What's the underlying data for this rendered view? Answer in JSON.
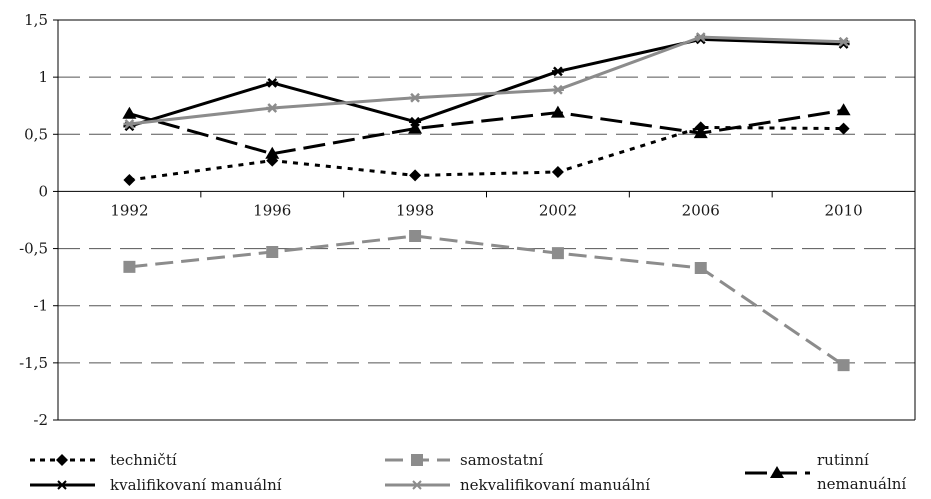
{
  "chart_data": {
    "type": "line",
    "categories": [
      "1992",
      "1996",
      "1998",
      "2002",
      "2006",
      "2010"
    ],
    "ylim": [
      -2,
      1.5
    ],
    "yticks": [
      "1,5",
      "1",
      "0,5",
      "0",
      "-0,5",
      "-1",
      "-1,5",
      "-2"
    ],
    "grid": "horizontal dashed",
    "legend_position": "bottom",
    "series": [
      {
        "name": "techničtí",
        "values": [
          0.1,
          0.27,
          0.14,
          0.17,
          0.56,
          0.55
        ],
        "color": "#000000",
        "dash": "dotted",
        "marker": "diamond"
      },
      {
        "name": "samostatní",
        "values": [
          -0.66,
          -0.53,
          -0.39,
          -0.54,
          -0.67,
          -1.52
        ],
        "color": "#8c8c8c",
        "dash": "dashed",
        "marker": "square"
      },
      {
        "name": "rutinní nemanuální",
        "values": [
          0.68,
          0.33,
          0.55,
          0.69,
          0.51,
          0.71
        ],
        "color": "#000000",
        "dash": "longdash",
        "marker": "triangle"
      },
      {
        "name": "kvalifikovaní manuální",
        "values": [
          0.57,
          0.95,
          0.61,
          1.05,
          1.33,
          1.29
        ],
        "color": "#000000",
        "dash": "solid",
        "marker": "star"
      },
      {
        "name": "nekvalifikovaní manuální",
        "values": [
          0.59,
          0.73,
          0.82,
          0.89,
          1.35,
          1.31
        ],
        "color": "#8c8c8c",
        "dash": "solid",
        "marker": "star"
      }
    ]
  },
  "legend": {
    "s1": "techničtí",
    "s2": "samostatní",
    "s3_line1": "rutinní",
    "s3_line2": "nemanuální",
    "s4": "kvalifikovaní manuální",
    "s5": "nekvalifikovaní manuální"
  }
}
